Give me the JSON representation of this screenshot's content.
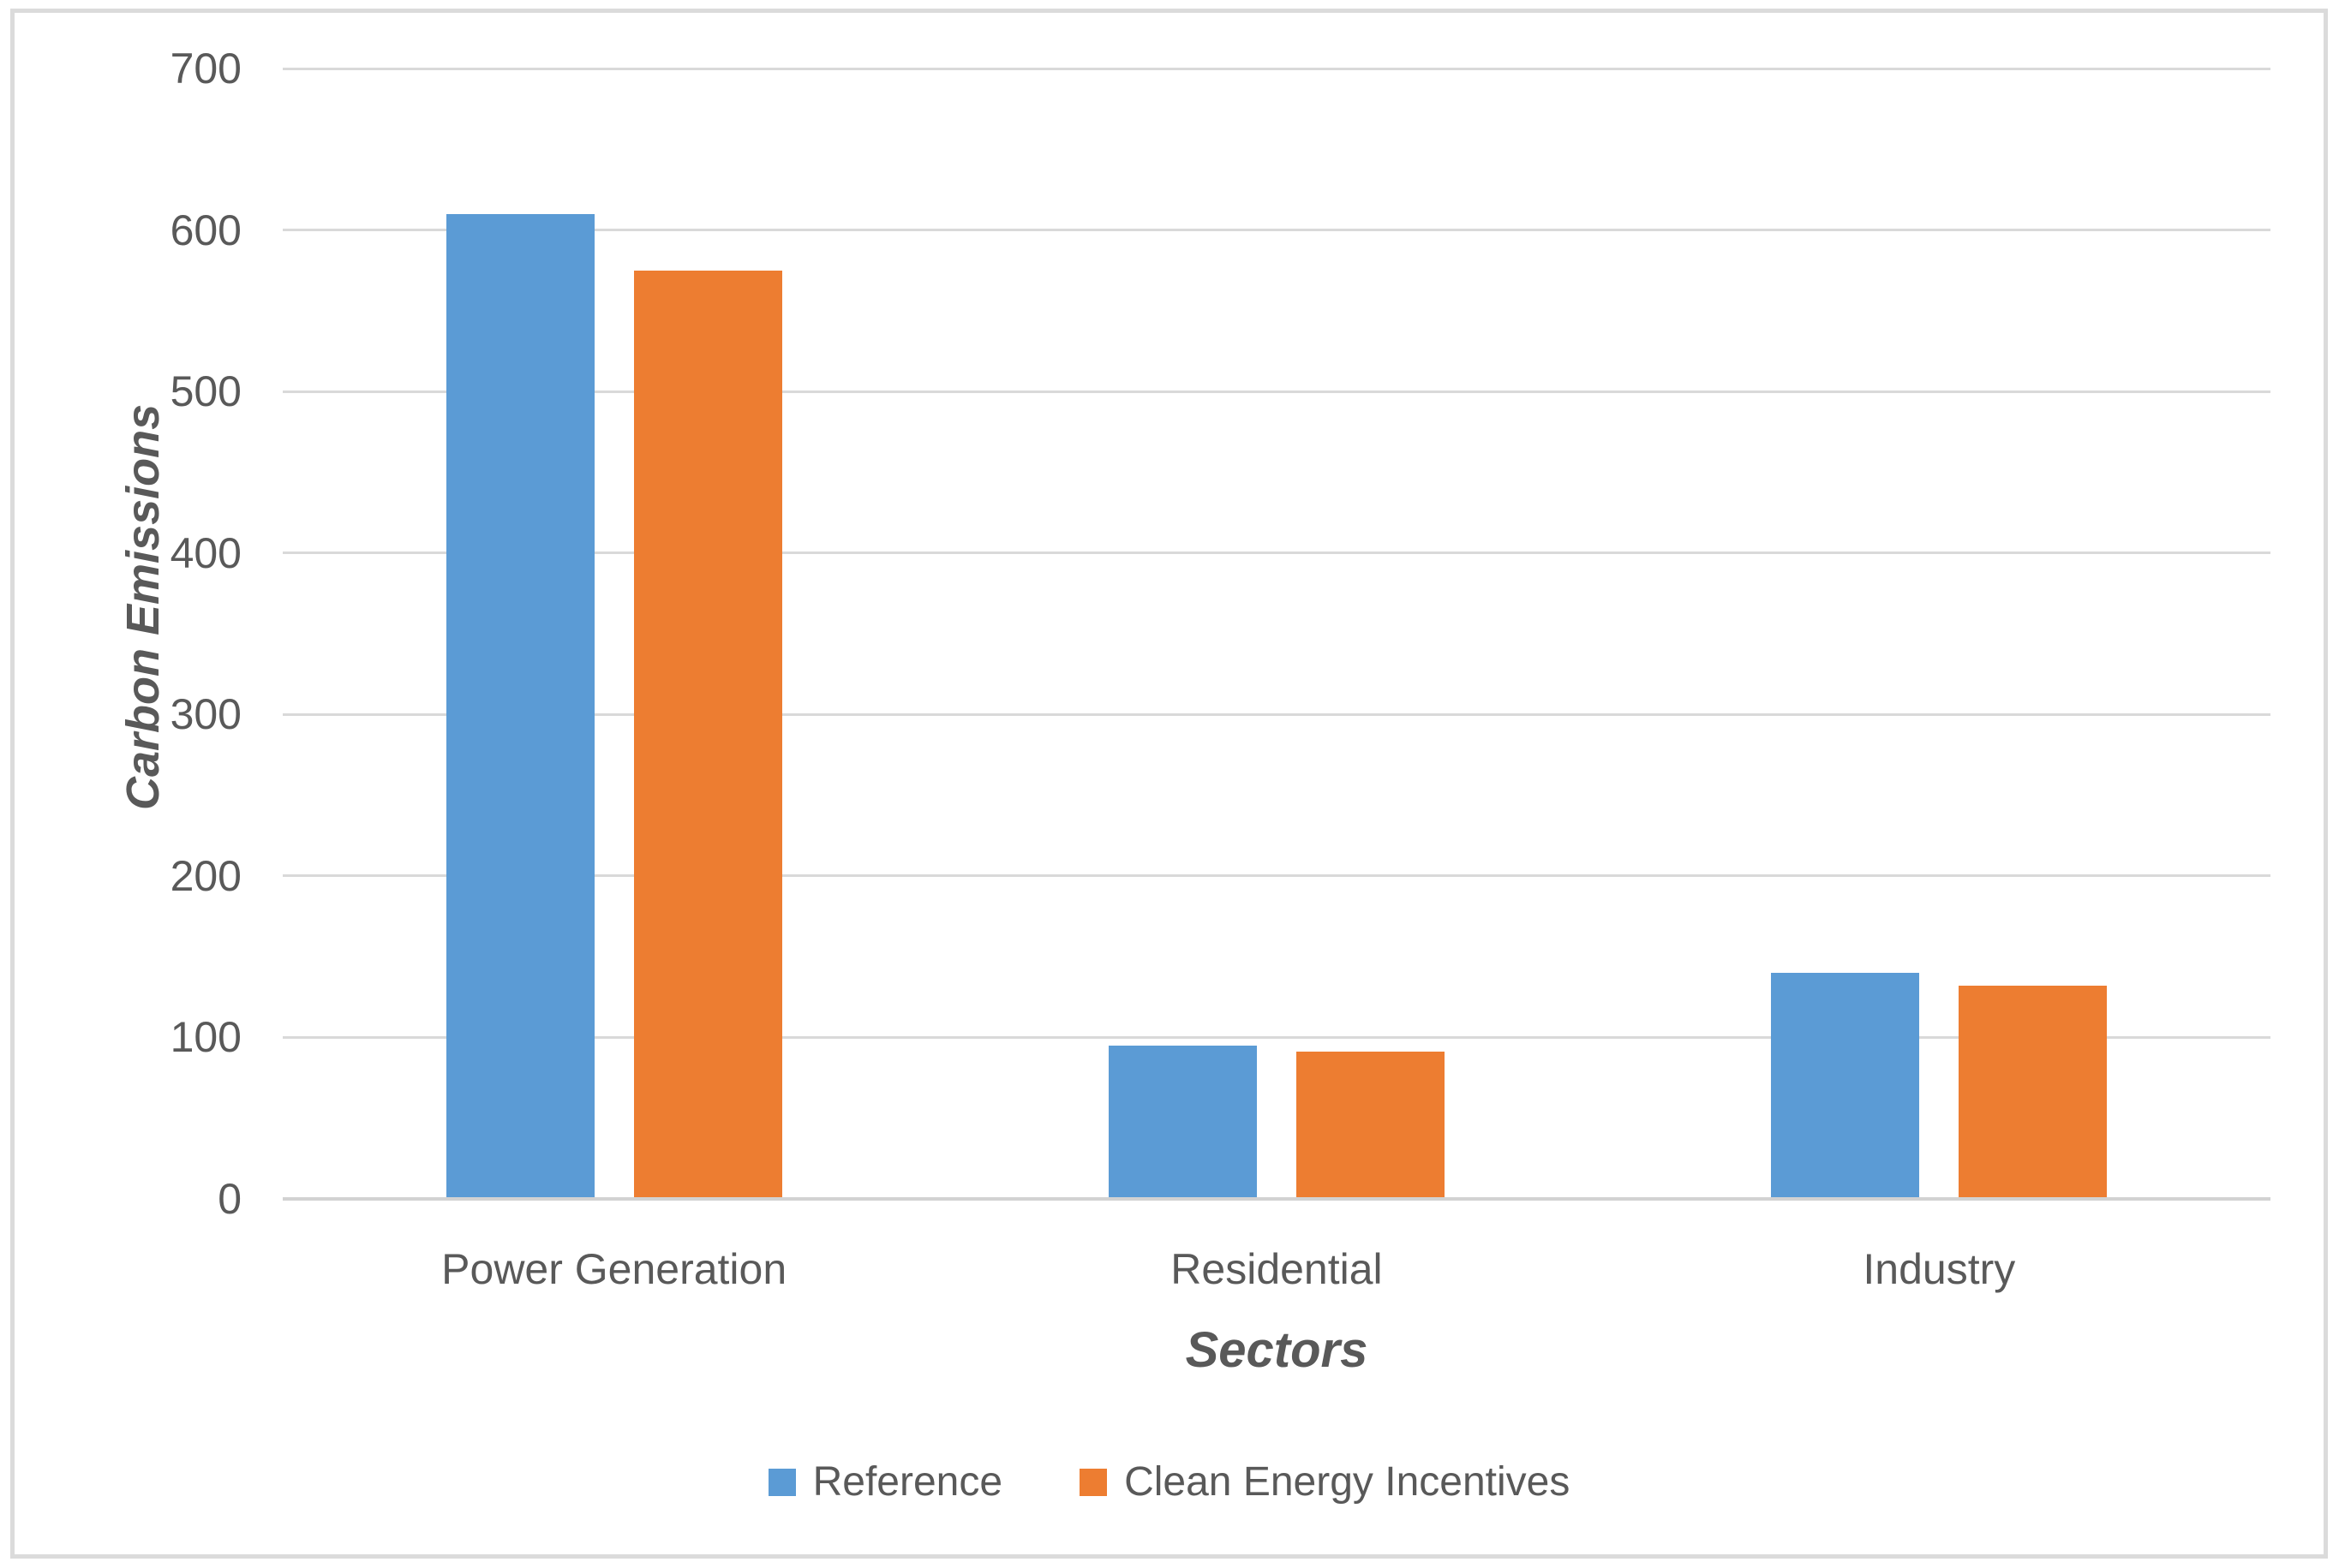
{
  "chart_data": {
    "type": "bar",
    "title": "",
    "categories": [
      "Power Generation",
      "Residential",
      "Industry"
    ],
    "series": [
      {
        "name": "Reference",
        "color": "#5B9BD5",
        "values": [
          610,
          95,
          140
        ]
      },
      {
        "name": "Clean Energy Incentives",
        "color": "#ED7D31",
        "values": [
          575,
          91,
          132
        ]
      }
    ],
    "xlabel": "Sectors",
    "ylabel": "Carbon Emissions",
    "ylim": [
      0,
      700
    ],
    "ytick_step": 100,
    "ytick_labels": [
      "0",
      "100",
      "200",
      "300",
      "400",
      "500",
      "600",
      "700"
    ],
    "grid": true,
    "legend_position": "bottom"
  },
  "colors": {
    "grid": "#D9D9D9",
    "axis_line": "#D2D2D2",
    "axis_text": "#595959",
    "frame_border": "#DBDBDB",
    "background": "#FFFFFF"
  }
}
